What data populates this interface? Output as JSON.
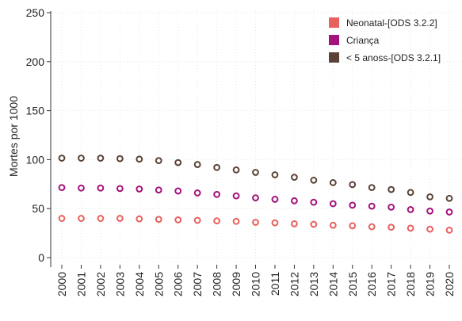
{
  "chart_data": {
    "type": "scatter",
    "ylabel": "Mortes por 1000",
    "ylim": [
      0,
      250
    ],
    "yticks": [
      0,
      50,
      100,
      150,
      200,
      250
    ],
    "grid": true,
    "legend_position": "top-right",
    "x": [
      "2000",
      "2001",
      "2002",
      "2003",
      "2004",
      "2005",
      "2006",
      "2007",
      "2008",
      "2009",
      "2010",
      "2011",
      "2012",
      "2013",
      "2014",
      "2015",
      "2016",
      "2017",
      "2018",
      "2019",
      "2020"
    ],
    "series": [
      {
        "name": "Neonatal-[ODS 3.2.2]",
        "color": "#e8615d",
        "values": [
          40,
          40,
          40,
          40,
          39.5,
          39,
          38.5,
          38,
          37.5,
          37,
          36,
          35.5,
          34.5,
          34,
          33,
          32.5,
          31.5,
          31,
          30,
          29,
          28
        ]
      },
      {
        "name": "Criança",
        "color": "#a3137b",
        "values": [
          71.5,
          71,
          71,
          70.5,
          70,
          69,
          68,
          66,
          64.5,
          63,
          61,
          59.5,
          58,
          56.5,
          55,
          53.5,
          52.5,
          51.5,
          49,
          47.5,
          46.5
        ]
      },
      {
        "name": "< 5 anoss-[ODS 3.2.1]",
        "color": "#5b4237",
        "values": [
          101.5,
          101.5,
          101.5,
          101,
          100.5,
          99,
          97,
          95,
          92,
          89.5,
          87,
          84.5,
          82,
          79,
          76.5,
          74.5,
          71.5,
          69.5,
          66.5,
          62,
          60.5
        ]
      }
    ]
  }
}
